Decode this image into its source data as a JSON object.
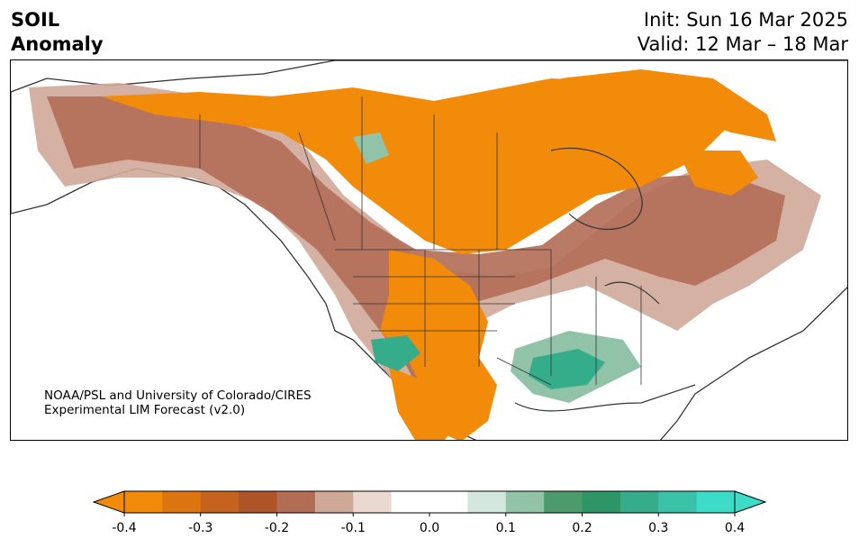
{
  "title": {
    "line1": "SOIL",
    "line2": "Anomaly",
    "init": "Init: Sun 16 Mar 2025",
    "valid": "Valid: 12 Mar – 18 Mar"
  },
  "credit": {
    "line1": "NOAA/PSL and University of Colorado/CIRES",
    "line2": "Experimental LIM Forecast (v2.0)"
  },
  "colorbar": {
    "colors": [
      "#f28a0a",
      "#dc740f",
      "#c5621d",
      "#ad5528",
      "#b26d55",
      "#cfa898",
      "#ead8d1",
      "#ffffff",
      "#ffffff",
      "#d3e7de",
      "#91c3a9",
      "#4b9b6d",
      "#2e9566",
      "#36ad8a",
      "#3ac2a8",
      "#3ddcc8"
    ],
    "extend_low_color": "#f28a0a",
    "extend_high_color": "#3ddcc8",
    "ticks": [
      "-0.4",
      "-0.3",
      "-0.2",
      "-0.1",
      "0.0",
      "0.1",
      "0.2",
      "0.3",
      "0.4"
    ]
  }
}
